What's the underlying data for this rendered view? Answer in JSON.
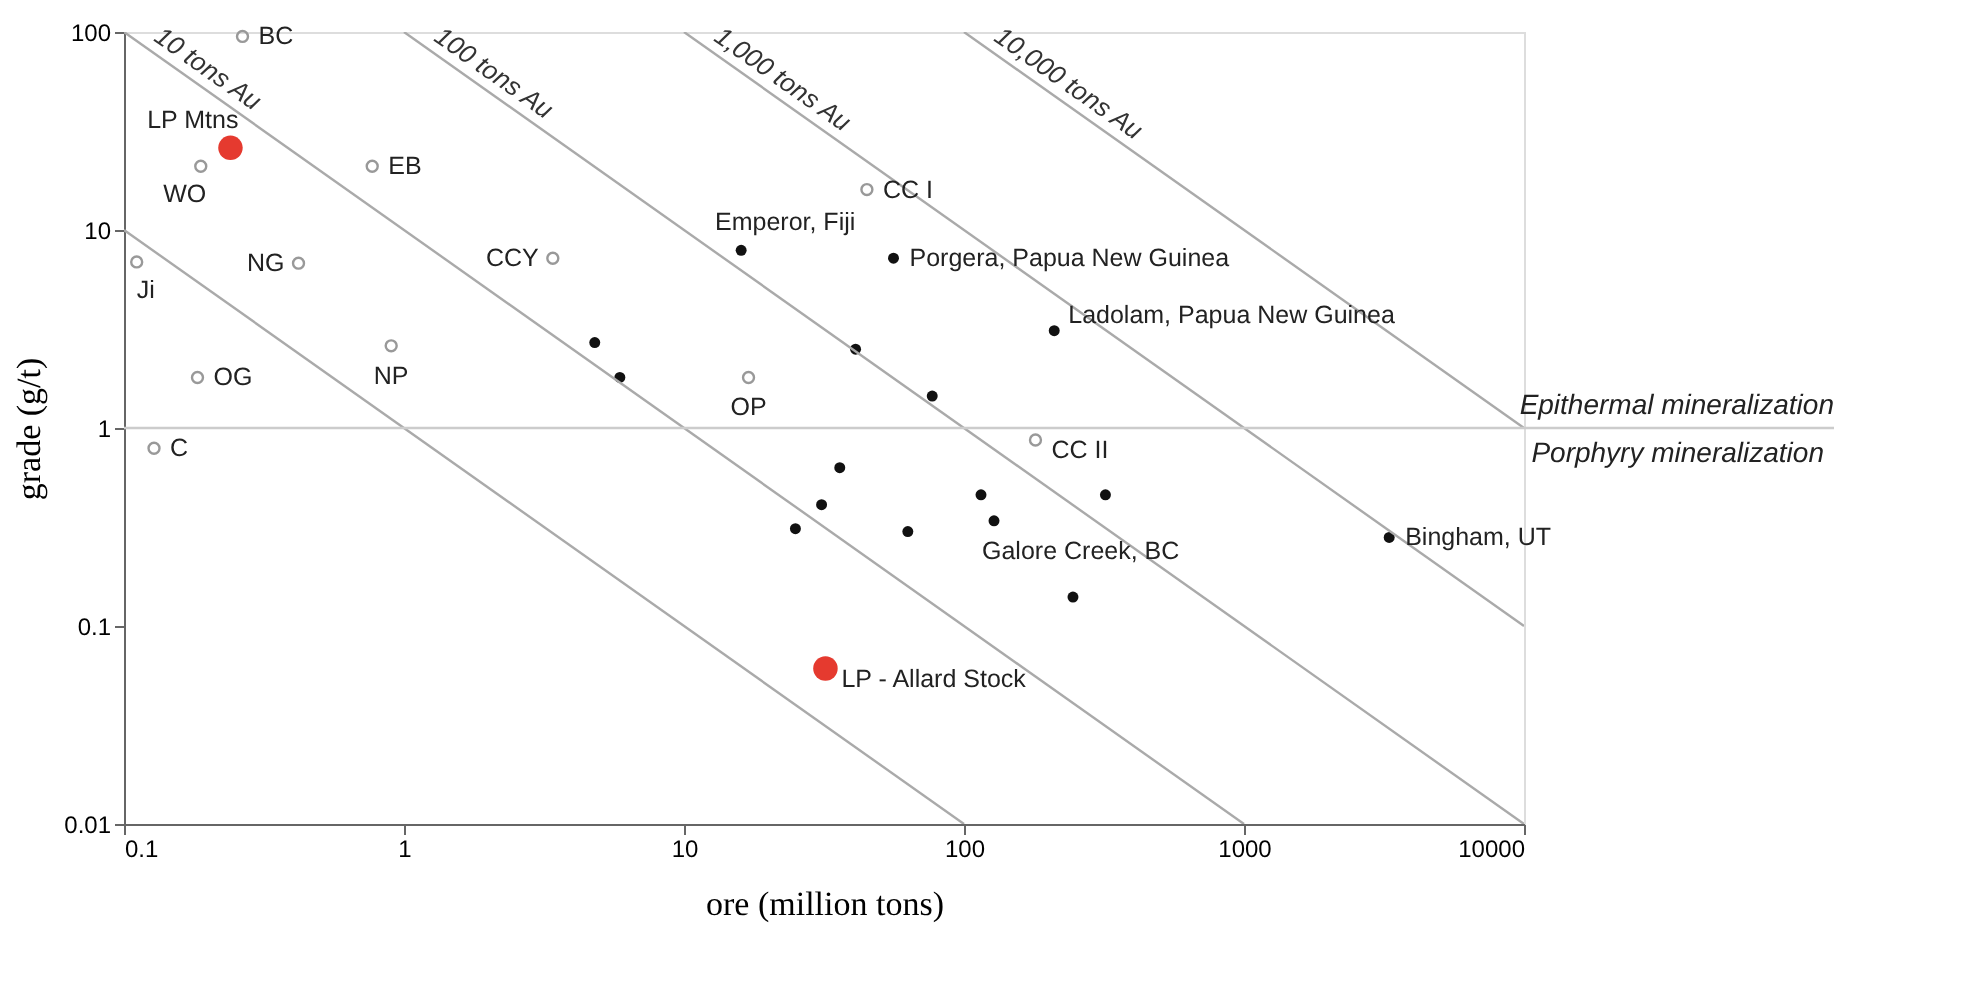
{
  "chart_data": {
    "type": "scatter",
    "xlabel": "ore (million tons)",
    "ylabel": "grade (g/t)",
    "log": "xy",
    "xlim": [
      0.1,
      10000
    ],
    "ylim": [
      0.01,
      100
    ],
    "xticks": [
      0.1,
      1,
      10,
      100,
      1000,
      10000
    ],
    "yticks": [
      0.01,
      0.1,
      1,
      10,
      100
    ],
    "series": [
      {
        "marker": "circle",
        "color": "#999999",
        "x": [
          0.265,
          0.188,
          0.77,
          0.111,
          0.42,
          3.4,
          0.9,
          0.183,
          0.128,
          17,
          45,
          180
        ],
        "values": [
          95,
          21,
          21,
          6.9,
          6.8,
          7.2,
          2.6,
          1.8,
          0.79,
          1.8,
          16,
          0.87
        ]
      },
      {
        "marker": "circle",
        "color": "#111111",
        "x": [
          16,
          56,
          210,
          4.8,
          5.9,
          41,
          77,
          36,
          31,
          25,
          63,
          115,
          128,
          320,
          245,
          3300
        ],
        "values": [
          7.9,
          7.2,
          3.1,
          2.7,
          1.8,
          2.5,
          1.45,
          0.63,
          0.41,
          0.31,
          0.3,
          0.46,
          0.34,
          0.46,
          0.14,
          0.28
        ]
      },
      {
        "marker": "circle",
        "color": "#e53a2f",
        "x": [
          0.24,
          32
        ],
        "values": [
          26,
          0.061
        ]
      },
      {
        "type": "line",
        "color": "#aaaaaa",
        "x": [
          0.1,
          100
        ],
        "values": [
          10,
          0.01
        ]
      },
      {
        "type": "line",
        "name": "10 tons Au",
        "color": "#aaaaaa",
        "x": [
          0.1,
          1000
        ],
        "values": [
          100,
          0.01
        ]
      },
      {
        "type": "line",
        "name": "100 tons Au",
        "color": "#aaaaaa",
        "x": [
          1,
          10000
        ],
        "values": [
          100,
          0.01
        ]
      },
      {
        "type": "line",
        "name": "1,000 tons Au",
        "color": "#aaaaaa",
        "x": [
          10,
          10000
        ],
        "values": [
          100,
          0.1
        ]
      },
      {
        "type": "line",
        "name": "10,000 tons Au",
        "color": "#aaaaaa",
        "x": [
          100,
          10000
        ],
        "values": [
          100,
          1
        ]
      }
    ],
    "ref_lines": [
      {
        "axis": "y",
        "value": 1,
        "label": "Epithermal mineralization",
        "color": "#cccccc"
      }
    ],
    "annotations": [
      {
        "text": "BC",
        "x": 0.265,
        "y": 95
      },
      {
        "text": "LP Mtns",
        "x": 0.24,
        "y": 26
      },
      {
        "text": "WO",
        "x": 0.188,
        "y": 21
      },
      {
        "text": "EB",
        "x": 0.77,
        "y": 21
      },
      {
        "text": "Ji",
        "x": 0.111,
        "y": 6.9
      },
      {
        "text": "NG",
        "x": 0.42,
        "y": 6.8
      },
      {
        "text": "CCY",
        "x": 3.4,
        "y": 7.2
      },
      {
        "text": "NP",
        "x": 0.9,
        "y": 2.6
      },
      {
        "text": "OG",
        "x": 0.183,
        "y": 1.8
      },
      {
        "text": "C",
        "x": 0.128,
        "y": 0.79
      },
      {
        "text": "OP",
        "x": 17,
        "y": 1.8
      },
      {
        "text": "CC I",
        "x": 45,
        "y": 16
      },
      {
        "text": "CC II",
        "x": 180,
        "y": 0.87
      },
      {
        "text": "Emperor, Fiji",
        "x": 16,
        "y": 7.9
      },
      {
        "text": "Porgera, Papua New Guinea",
        "x": 56,
        "y": 7.2
      },
      {
        "text": "Ladolam, Papua New Guinea",
        "x": 210,
        "y": 3.1
      },
      {
        "text": "Galore Creek, BC",
        "x": 128,
        "y": 0.34
      },
      {
        "text": "Bingham, UT",
        "x": 3300,
        "y": 0.28
      },
      {
        "text": "LP - Allard Stock",
        "x": 32,
        "y": 0.061
      },
      "Porphyry mineralization"
    ]
  }
}
